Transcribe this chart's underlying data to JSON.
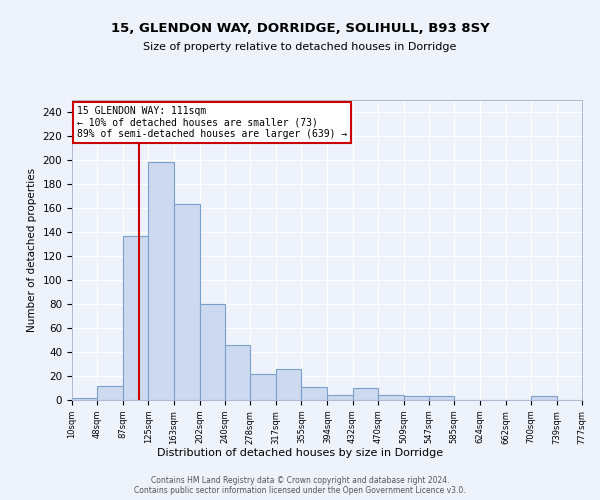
{
  "title": "15, GLENDON WAY, DORRIDGE, SOLIHULL, B93 8SY",
  "subtitle": "Size of property relative to detached houses in Dorridge",
  "xlabel": "Distribution of detached houses by size in Dorridge",
  "ylabel": "Number of detached properties",
  "bar_color": "#ccd9ee",
  "bar_edge_color": "#7aa0cc",
  "annotation_text": "15 GLENDON WAY: 111sqm\n← 10% of detached houses are smaller (73)\n89% of semi-detached houses are larger (639) →",
  "annotation_box_color": "#ffffff",
  "annotation_box_edge_color": "#cc0000",
  "vline_x": 111,
  "vline_color": "#cc0000",
  "bin_edges": [
    10,
    48,
    87,
    125,
    163,
    202,
    240,
    278,
    317,
    355,
    394,
    432,
    470,
    509,
    547,
    585,
    624,
    662,
    700,
    739,
    777
  ],
  "bar_heights": [
    2,
    12,
    137,
    198,
    163,
    80,
    46,
    22,
    26,
    11,
    4,
    10,
    4,
    3,
    3,
    0,
    0,
    0,
    3,
    0
  ],
  "ylim": [
    0,
    250
  ],
  "yticks": [
    0,
    20,
    40,
    60,
    80,
    100,
    120,
    140,
    160,
    180,
    200,
    220,
    240
  ],
  "footer_text": "Contains HM Land Registry data © Crown copyright and database right 2024.\nContains public sector information licensed under the Open Government Licence v3.0.",
  "background_color": "#eef2fa"
}
